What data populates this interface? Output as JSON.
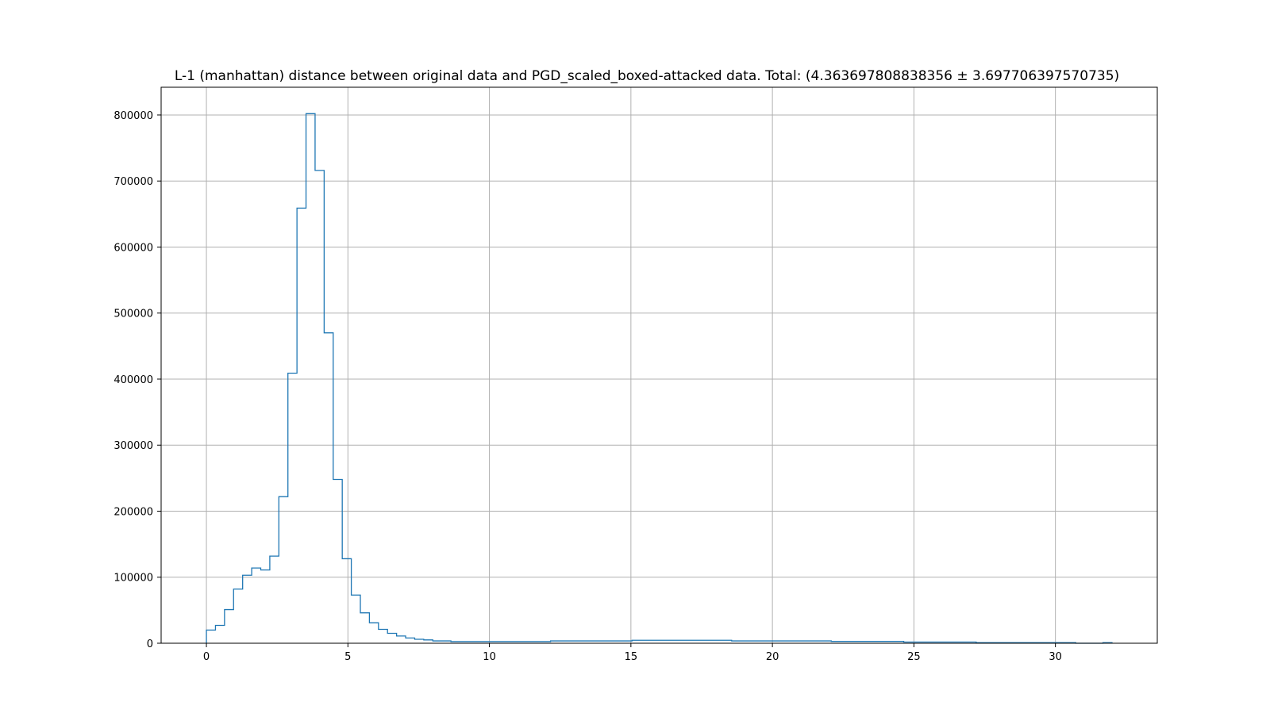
{
  "chart_data": {
    "type": "histogram",
    "title": "L-1 (manhattan) distance between original data and PGD_scaled_boxed-attacked data. Total: (4.363697808838356 ± 3.697706397570735)",
    "xlabel": "",
    "ylabel": "",
    "xlim": [
      -1.6,
      33.6
    ],
    "ylim": [
      0,
      842000
    ],
    "xticks": [
      0,
      5,
      10,
      15,
      20,
      25,
      30
    ],
    "yticks": [
      0,
      100000,
      200000,
      300000,
      400000,
      500000,
      600000,
      700000,
      800000
    ],
    "grid": true,
    "histtype": "step",
    "bin_edges": [
      0,
      0.32,
      0.64,
      0.96,
      1.28,
      1.6,
      1.92,
      2.24,
      2.56,
      2.88,
      3.2,
      3.52,
      3.84,
      4.16,
      4.48,
      4.8,
      5.12,
      5.44,
      5.76,
      6.08,
      6.4,
      6.72,
      7.04,
      7.36,
      7.68,
      8.0,
      8.64,
      12.16,
      15.04,
      18.56,
      22.08,
      24.64,
      27.2,
      30.72,
      31.68,
      32.0
    ],
    "counts": [
      20000,
      27000,
      51000,
      82000,
      103000,
      114000,
      111000,
      132000,
      222000,
      409000,
      659000,
      802000,
      716000,
      470000,
      248000,
      128000,
      73000,
      46000,
      31000,
      21000,
      15000,
      11000,
      8000,
      6000,
      5000,
      3500,
      2500,
      3500,
      4500,
      3500,
      2800,
      1800,
      800,
      0,
      800
    ],
    "colors": {
      "series": "#1f77b4",
      "grid": "#b0b0b0",
      "axes": "#000000"
    }
  }
}
